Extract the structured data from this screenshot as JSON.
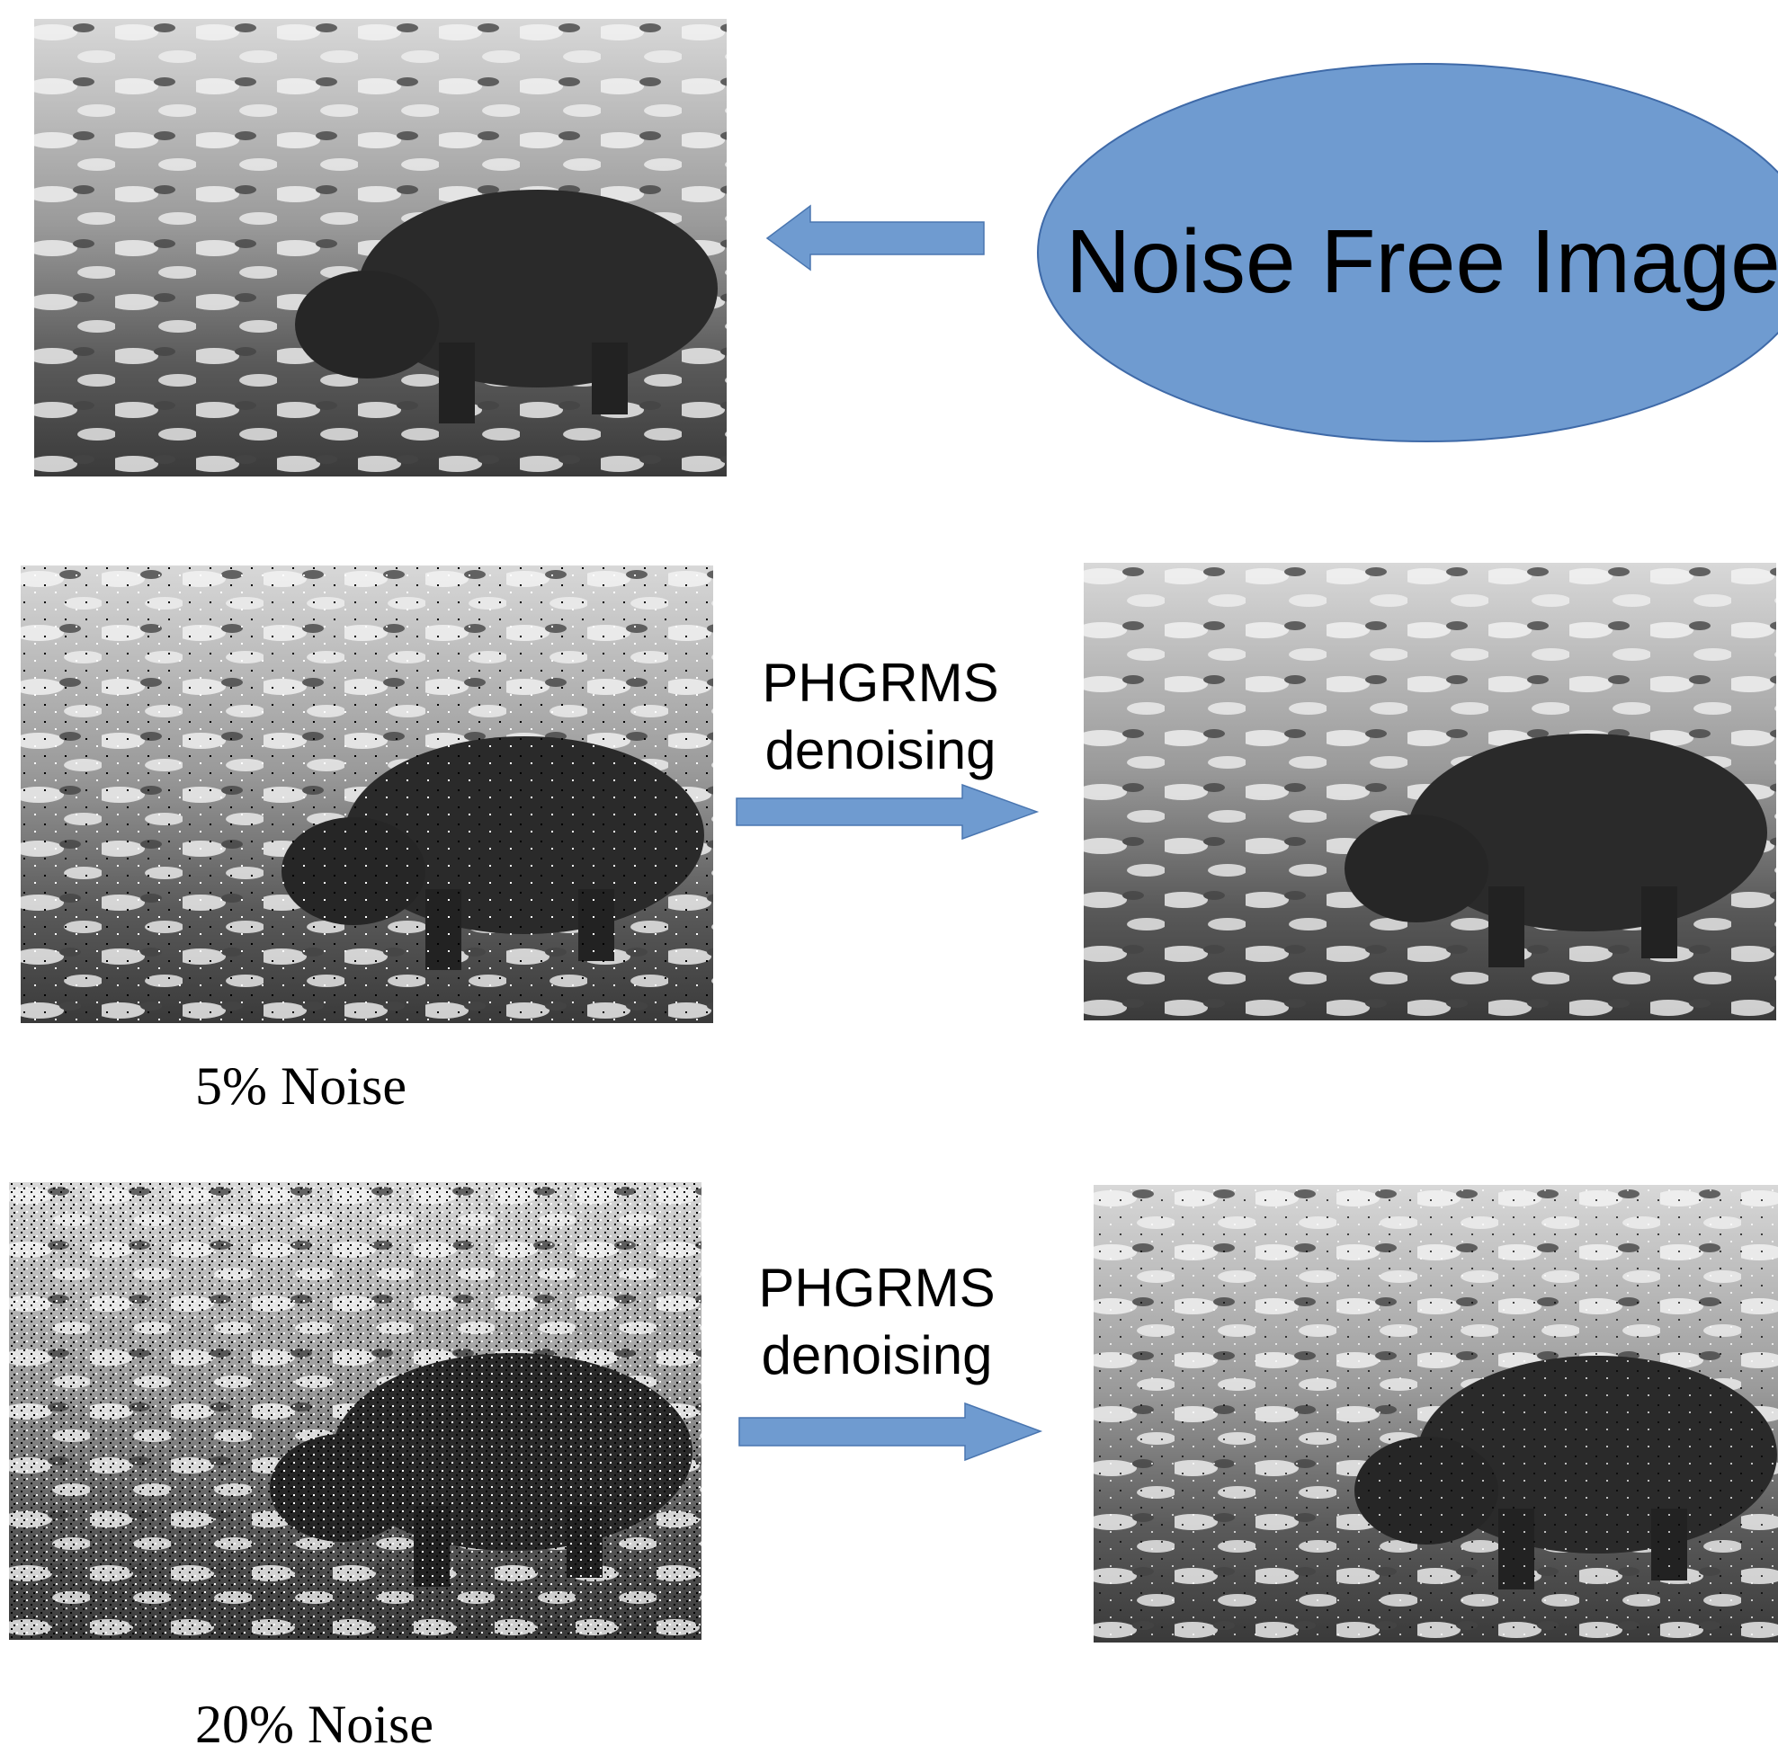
{
  "reference": {
    "label": "Noise Free Image"
  },
  "rows": [
    {
      "method": [
        "PHGRMS",
        "denoising"
      ],
      "noise_label": "5% Noise"
    },
    {
      "method": [
        "PHGRMS",
        "denoising"
      ],
      "noise_label": "20% Noise"
    }
  ]
}
